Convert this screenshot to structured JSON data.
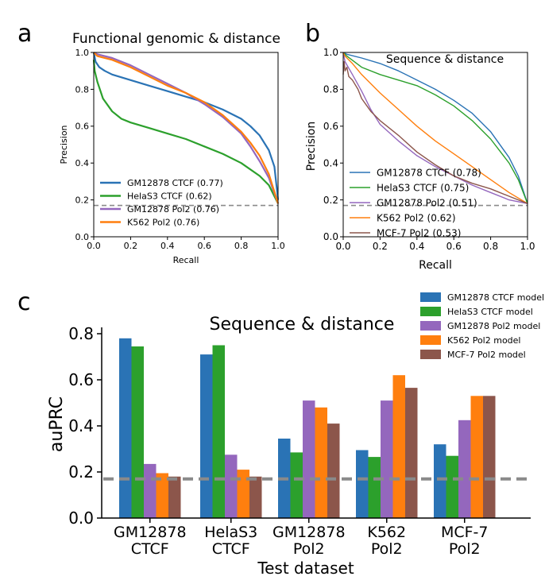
{
  "panel_labels": {
    "a": "a",
    "b": "b",
    "c": "c"
  },
  "colors": {
    "blue": "#2a73b5",
    "green": "#2ca02c",
    "purple": "#9467bd",
    "orange": "#ff7f0e",
    "brown": "#8c564b",
    "baseline": "#8a8a8a"
  },
  "chart_data": [
    {
      "id": "a",
      "type": "line",
      "title": "Functional genomic & distance",
      "xlabel": "Recall",
      "ylabel": "Precision",
      "xlim": [
        0,
        1
      ],
      "ylim": [
        0,
        1
      ],
      "xticks": [
        "0.0",
        "0.2",
        "0.4",
        "0.6",
        "0.8",
        "1.0"
      ],
      "yticks": [
        "0.0",
        "0.2",
        "0.4",
        "0.6",
        "0.8",
        "1.0"
      ],
      "baseline": 0.17,
      "legend_position": "bottom-left",
      "series": [
        {
          "name": "GM12878 CTCF (0.77)",
          "color": "#2a73b5",
          "x": [
            0,
            0.01,
            0.03,
            0.06,
            0.1,
            0.2,
            0.3,
            0.4,
            0.5,
            0.6,
            0.7,
            0.8,
            0.85,
            0.9,
            0.95,
            0.98,
            1.0
          ],
          "y": [
            1.0,
            0.95,
            0.92,
            0.9,
            0.88,
            0.85,
            0.82,
            0.79,
            0.76,
            0.73,
            0.69,
            0.64,
            0.6,
            0.55,
            0.47,
            0.38,
            0.2
          ]
        },
        {
          "name": "HelaS3 CTCF (0.62)",
          "color": "#2ca02c",
          "x": [
            0,
            0.005,
            0.02,
            0.05,
            0.1,
            0.15,
            0.2,
            0.3,
            0.4,
            0.5,
            0.6,
            0.7,
            0.8,
            0.9,
            0.95,
            1.0
          ],
          "y": [
            0.96,
            0.9,
            0.84,
            0.75,
            0.68,
            0.64,
            0.62,
            0.59,
            0.56,
            0.53,
            0.49,
            0.45,
            0.4,
            0.33,
            0.28,
            0.18
          ]
        },
        {
          "name": "GM12878 Pol2 (0.76)",
          "color": "#9467bd",
          "x": [
            0,
            0.02,
            0.1,
            0.2,
            0.3,
            0.4,
            0.5,
            0.6,
            0.7,
            0.8,
            0.85,
            0.9,
            0.95,
            1.0
          ],
          "y": [
            1.0,
            0.99,
            0.97,
            0.93,
            0.88,
            0.83,
            0.78,
            0.72,
            0.65,
            0.56,
            0.49,
            0.41,
            0.32,
            0.18
          ]
        },
        {
          "name": "K562 Pol2 (0.76)",
          "color": "#ff7f0e",
          "x": [
            0,
            0.02,
            0.1,
            0.2,
            0.3,
            0.4,
            0.5,
            0.6,
            0.7,
            0.8,
            0.85,
            0.9,
            0.95,
            1.0
          ],
          "y": [
            1.0,
            0.98,
            0.96,
            0.92,
            0.87,
            0.82,
            0.78,
            0.73,
            0.66,
            0.57,
            0.51,
            0.44,
            0.34,
            0.18
          ]
        }
      ]
    },
    {
      "id": "b",
      "type": "line",
      "title": "Sequence & distance",
      "xlabel": "Recall",
      "ylabel": "Precision",
      "xlim": [
        0,
        1
      ],
      "ylim": [
        0,
        1
      ],
      "xticks": [
        "0.0",
        "0.2",
        "0.4",
        "0.6",
        "0.8",
        "1.0"
      ],
      "yticks": [
        "0.0",
        "0.2",
        "0.4",
        "0.6",
        "0.8",
        "1.0"
      ],
      "baseline": 0.17,
      "legend_position": "bottom-left",
      "series": [
        {
          "name": "GM12878 CTCF (0.78)",
          "color": "#2a73b5",
          "x": [
            0,
            0.02,
            0.1,
            0.2,
            0.3,
            0.4,
            0.5,
            0.6,
            0.7,
            0.8,
            0.9,
            0.95,
            1.0
          ],
          "y": [
            1.0,
            0.99,
            0.97,
            0.94,
            0.9,
            0.85,
            0.8,
            0.74,
            0.67,
            0.57,
            0.43,
            0.33,
            0.18
          ]
        },
        {
          "name": "HelaS3 CTCF (0.75)",
          "color": "#2ca02c",
          "x": [
            0,
            0.02,
            0.1,
            0.2,
            0.3,
            0.4,
            0.5,
            0.6,
            0.7,
            0.8,
            0.9,
            0.95,
            1.0
          ],
          "y": [
            1.0,
            0.98,
            0.92,
            0.88,
            0.85,
            0.82,
            0.77,
            0.71,
            0.63,
            0.53,
            0.4,
            0.31,
            0.18
          ]
        },
        {
          "name": "GM12878 Pol2 (0.51)",
          "color": "#9467bd",
          "x": [
            0,
            0.01,
            0.05,
            0.1,
            0.15,
            0.2,
            0.3,
            0.4,
            0.5,
            0.6,
            0.7,
            0.8,
            0.9,
            1.0
          ],
          "y": [
            1.0,
            0.95,
            0.88,
            0.79,
            0.69,
            0.61,
            0.52,
            0.44,
            0.38,
            0.33,
            0.28,
            0.24,
            0.2,
            0.18
          ]
        },
        {
          "name": "K562 Pol2 (0.62)",
          "color": "#ff7f0e",
          "x": [
            0,
            0.01,
            0.05,
            0.1,
            0.2,
            0.3,
            0.4,
            0.5,
            0.6,
            0.7,
            0.8,
            0.9,
            1.0
          ],
          "y": [
            1.0,
            0.98,
            0.94,
            0.88,
            0.78,
            0.69,
            0.6,
            0.52,
            0.45,
            0.38,
            0.31,
            0.24,
            0.18
          ]
        },
        {
          "name": "MCF-7 Pol2 (0.53)",
          "color": "#8c564b",
          "x": [
            0,
            0.005,
            0.01,
            0.02,
            0.03,
            0.05,
            0.08,
            0.1,
            0.15,
            0.2,
            0.3,
            0.4,
            0.5,
            0.6,
            0.7,
            0.8,
            0.9,
            1.0
          ],
          "y": [
            0.88,
            0.95,
            0.9,
            0.92,
            0.87,
            0.85,
            0.8,
            0.75,
            0.68,
            0.63,
            0.55,
            0.46,
            0.39,
            0.33,
            0.29,
            0.26,
            0.22,
            0.18
          ]
        }
      ]
    },
    {
      "id": "c",
      "type": "bar",
      "title": "Sequence & distance",
      "xlabel": "Test dataset",
      "ylabel": "auPRC",
      "ylim": [
        0,
        0.85
      ],
      "yticks": [
        "0.0",
        "0.2",
        "0.4",
        "0.6",
        "0.8"
      ],
      "baseline": 0.17,
      "categories": [
        "GM12878 CTCF",
        "HelaS3 CTCF",
        "GM12878 Pol2",
        "K562 Pol2",
        "MCF-7 Pol2"
      ],
      "category_lines": [
        [
          "GM12878",
          "CTCF"
        ],
        [
          "HelaS3",
          "CTCF"
        ],
        [
          "GM12878",
          "Pol2"
        ],
        [
          "K562",
          "Pol2"
        ],
        [
          "MCF-7",
          "Pol2"
        ]
      ],
      "legend_position": "top-right",
      "series": [
        {
          "name": "GM12878 CTCF model",
          "color": "#2a73b5",
          "values": [
            0.78,
            0.71,
            0.345,
            0.295,
            0.32
          ]
        },
        {
          "name": "HelaS3 CTCF model",
          "color": "#2ca02c",
          "values": [
            0.745,
            0.75,
            0.285,
            0.265,
            0.27
          ]
        },
        {
          "name": "GM12878 Pol2 model",
          "color": "#9467bd",
          "values": [
            0.235,
            0.275,
            0.51,
            0.51,
            0.425
          ]
        },
        {
          "name": "K562 Pol2 model",
          "color": "#ff7f0e",
          "values": [
            0.195,
            0.21,
            0.48,
            0.62,
            0.53
          ]
        },
        {
          "name": "MCF-7 Pol2 model",
          "color": "#8c564b",
          "values": [
            0.18,
            0.18,
            0.41,
            0.565,
            0.53
          ]
        }
      ]
    }
  ]
}
